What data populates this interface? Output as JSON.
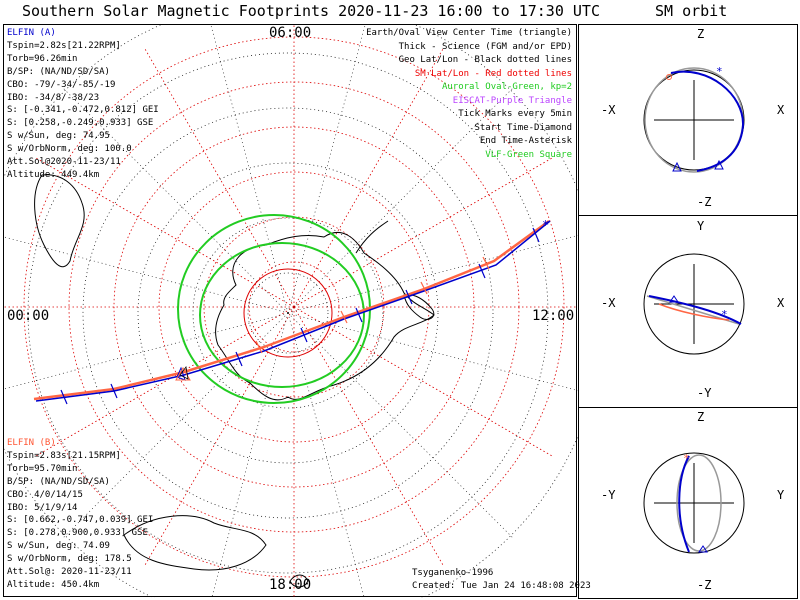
{
  "title": "Southern Solar Magnetic Footprints 2020-11-23 16:00 to 17:30 UTC",
  "orbit_title": "SM orbit",
  "clock_labels": {
    "top": "06:00",
    "bottom": "18:00",
    "left": "00:00",
    "right": "12:00"
  },
  "elfin_a": {
    "name": "ELFIN (A)",
    "color": "#0000cc",
    "lines": [
      "Tspin=2.82s[21.22RPM]",
      "Torb=96.26min",
      "B/SP: (NA/ND/SD/SA)",
      "CBO: -79/-34/-85/-19",
      "IBO: -34/8/-38/23",
      "S: [-0.341,-0.472,0.812] GEI",
      "S: [0.258,-0.249,0.933] GSE",
      "S w/Sun, deg: 74.95",
      "S w/OrbNorm, deg: 100.0",
      "Att.Sol@2020-11-23/11",
      "Altitude: 449.4km"
    ]
  },
  "elfin_b": {
    "name": "ELFIN (B)",
    "color": "#ff5533",
    "lines": [
      "Tspin=2.83s[21.15RPM]",
      "Torb=95.70min",
      "B/SP: (NA/ND/SD/SA)",
      "CBO: 4/0/14/15",
      "IBO: 5/1/9/14",
      "S: [0.662,-0.747,0.039] GEI",
      "S: [0.278,0.900,0.933] GSE",
      "S w/Sun, deg: 74.09",
      "S w/OrbNorm, deg: 178.5",
      "Att.Sol@: 2020-11-23/11",
      "Altitude: 450.4km"
    ]
  },
  "legend": [
    {
      "text": "Earth/Oval View Center Time (triangle)",
      "color": "#000000"
    },
    {
      "text": "Thick - Science (FGM and/or EPD)",
      "color": "#000000"
    },
    {
      "text": "Geo Lat/Lon - Black dotted lines",
      "color": "#000000"
    },
    {
      "text": "SM Lat/Lon - Red dotted lines",
      "color": "#ee0000"
    },
    {
      "text": "Auroral Oval-Green, kp=2",
      "color": "#22cc22"
    },
    {
      "text": "EISCAT-Purple Triangle",
      "color": "#bb44ff"
    },
    {
      "text": "Tick Marks every 5min",
      "color": "#000000"
    },
    {
      "text": "Start Time-Diamond",
      "color": "#000000"
    },
    {
      "text": "End Time-Asterisk",
      "color": "#000000"
    },
    {
      "text": "VLF-Green Square",
      "color": "#22cc22"
    }
  ],
  "footer": {
    "model": "Tsyganenko-1996",
    "created": "Created: Tue Jan 24 16:48:08 2023"
  },
  "orbit_panels": [
    {
      "top": "Z",
      "bottom": "-Z",
      "left": "-X",
      "right": "X"
    },
    {
      "top": "Y",
      "bottom": "-Y",
      "left": "-X",
      "right": "X"
    },
    {
      "top": "Z",
      "bottom": "-Z",
      "left": "-Y",
      "right": "Y"
    }
  ]
}
